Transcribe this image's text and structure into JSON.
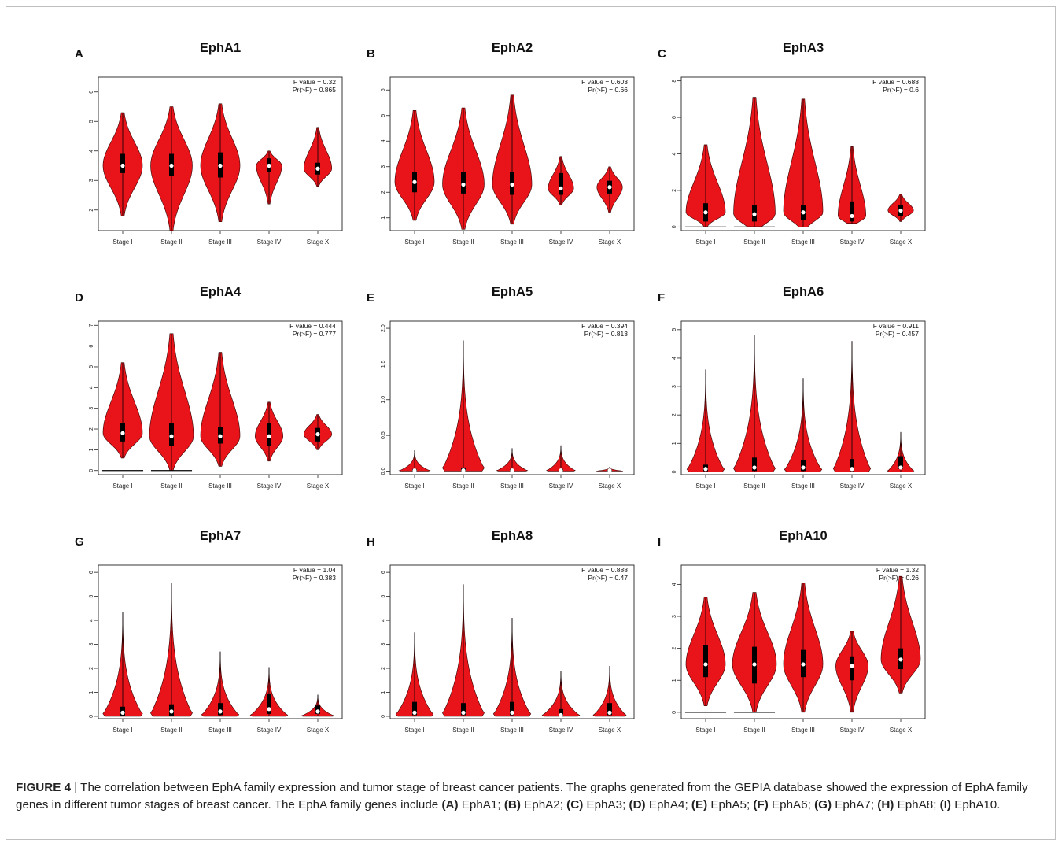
{
  "chart_data": [
    {
      "type": "violin",
      "panel_letter": "A",
      "title": "EphA1",
      "f_label": "F value = 0.32",
      "p_label": "Pr(>F) = 0.865",
      "ylim": [
        1.3,
        6.5
      ],
      "yticks": [
        2,
        3,
        4,
        5,
        6
      ],
      "categories": [
        "Stage I",
        "Stage II",
        "Stage III",
        "Stage IV",
        "Stage X"
      ],
      "series": [
        {
          "min": 1.8,
          "max": 5.3,
          "q1": 3.25,
          "median": 3.5,
          "q3": 3.9,
          "width": 0.85
        },
        {
          "min": 1.3,
          "max": 5.5,
          "q1": 3.15,
          "median": 3.5,
          "q3": 3.9,
          "width": 0.9
        },
        {
          "min": 1.6,
          "max": 5.6,
          "q1": 3.1,
          "median": 3.5,
          "q3": 3.95,
          "width": 0.85
        },
        {
          "min": 2.2,
          "max": 4.0,
          "q1": 3.3,
          "median": 3.5,
          "q3": 3.75,
          "width": 0.55
        },
        {
          "min": 2.8,
          "max": 4.8,
          "q1": 3.2,
          "median": 3.4,
          "q3": 3.6,
          "width": 0.6
        }
      ]
    },
    {
      "type": "violin",
      "panel_letter": "B",
      "title": "EphA2",
      "f_label": "F value = 0.603",
      "p_label": "Pr(>F) = 0.66",
      "ylim": [
        0.5,
        6.5
      ],
      "yticks": [
        1,
        2,
        3,
        4,
        5,
        6
      ],
      "categories": [
        "Stage I",
        "Stage II",
        "Stage III",
        "Stage IV",
        "Stage X"
      ],
      "series": [
        {
          "min": 0.9,
          "max": 5.2,
          "q1": 2.0,
          "median": 2.4,
          "q3": 2.8,
          "width": 0.85
        },
        {
          "min": 0.55,
          "max": 5.3,
          "q1": 1.95,
          "median": 2.3,
          "q3": 2.8,
          "width": 0.9
        },
        {
          "min": 0.75,
          "max": 5.8,
          "q1": 1.9,
          "median": 2.3,
          "q3": 2.8,
          "width": 0.85
        },
        {
          "min": 1.5,
          "max": 3.4,
          "q1": 1.9,
          "median": 2.15,
          "q3": 2.75,
          "width": 0.55
        },
        {
          "min": 1.2,
          "max": 3.0,
          "q1": 1.95,
          "median": 2.2,
          "q3": 2.45,
          "width": 0.55
        }
      ]
    },
    {
      "type": "violin",
      "panel_letter": "C",
      "title": "EphA3",
      "f_label": "F value = 0.688",
      "p_label": "Pr(>F) = 0.6",
      "ylim": [
        -0.2,
        8.2
      ],
      "yticks": [
        0,
        2,
        4,
        6,
        8
      ],
      "categories": [
        "Stage I",
        "Stage II",
        "Stage III",
        "Stage IV",
        "Stage X"
      ],
      "series": [
        {
          "min": 0,
          "max": 4.5,
          "q1": 0.3,
          "median": 0.8,
          "q3": 1.3,
          "width": 0.85,
          "baseline": true
        },
        {
          "min": 0,
          "max": 7.1,
          "q1": 0.3,
          "median": 0.7,
          "q3": 1.2,
          "width": 0.9,
          "baseline": true
        },
        {
          "min": 0,
          "max": 7.0,
          "q1": 0.4,
          "median": 0.8,
          "q3": 1.2,
          "width": 0.85
        },
        {
          "min": 0.2,
          "max": 4.4,
          "q1": 0.3,
          "median": 0.6,
          "q3": 1.4,
          "width": 0.6
        },
        {
          "min": 0.3,
          "max": 1.8,
          "q1": 0.6,
          "median": 0.9,
          "q3": 1.2,
          "width": 0.55
        }
      ]
    },
    {
      "type": "violin",
      "panel_letter": "D",
      "title": "EphA4",
      "f_label": "F value = 0.444",
      "p_label": "Pr(>F) = 0.777",
      "ylim": [
        -0.2,
        7.2
      ],
      "yticks": [
        0,
        1,
        2,
        3,
        4,
        5,
        6,
        7
      ],
      "categories": [
        "Stage I",
        "Stage II",
        "Stage III",
        "Stage IV",
        "Stage X"
      ],
      "series": [
        {
          "min": 0.6,
          "max": 5.2,
          "q1": 1.4,
          "median": 1.8,
          "q3": 2.3,
          "width": 0.85,
          "baseline": true
        },
        {
          "min": 0,
          "max": 6.6,
          "q1": 1.2,
          "median": 1.65,
          "q3": 2.3,
          "width": 0.95,
          "baseline": true
        },
        {
          "min": 0.2,
          "max": 5.7,
          "q1": 1.3,
          "median": 1.65,
          "q3": 2.1,
          "width": 0.85
        },
        {
          "min": 0.45,
          "max": 3.3,
          "q1": 1.2,
          "median": 1.65,
          "q3": 2.3,
          "width": 0.6
        },
        {
          "min": 1.0,
          "max": 2.7,
          "q1": 1.4,
          "median": 1.75,
          "q3": 2.05,
          "width": 0.6
        }
      ]
    },
    {
      "type": "violin",
      "panel_letter": "E",
      "title": "EphA5",
      "f_label": "F value = 0.394",
      "p_label": "Pr(>F) = 0.813",
      "ylim": [
        -0.05,
        2.1
      ],
      "yticks": [
        0.0,
        0.5,
        1.0,
        1.5,
        2.0
      ],
      "categories": [
        "Stage I",
        "Stage II",
        "Stage III",
        "Stage IV",
        "Stage X"
      ],
      "series": [
        {
          "min": 0,
          "max": 0.29,
          "q1": 0,
          "median": 0.01,
          "q3": 0.03,
          "width": 0.7,
          "shape": "base"
        },
        {
          "min": 0,
          "max": 1.83,
          "q1": 0,
          "median": 0.01,
          "q3": 0.05,
          "width": 0.95,
          "shape": "base"
        },
        {
          "min": 0,
          "max": 0.32,
          "q1": 0,
          "median": 0.01,
          "q3": 0.03,
          "width": 0.7,
          "shape": "base"
        },
        {
          "min": 0,
          "max": 0.36,
          "q1": 0,
          "median": 0.01,
          "q3": 0.03,
          "width": 0.65,
          "shape": "base"
        },
        {
          "min": 0,
          "max": 0.06,
          "q1": 0,
          "median": 0.01,
          "q3": 0.02,
          "width": 0.6,
          "shape": "base"
        }
      ]
    },
    {
      "type": "violin",
      "panel_letter": "F",
      "title": "EphA6",
      "f_label": "F value = 0.911",
      "p_label": "Pr(>F) = 0.457",
      "ylim": [
        -0.1,
        5.3
      ],
      "yticks": [
        0,
        1,
        2,
        3,
        4,
        5
      ],
      "categories": [
        "Stage I",
        "Stage II",
        "Stage III",
        "Stage IV",
        "Stage X"
      ],
      "series": [
        {
          "min": 0,
          "max": 3.6,
          "q1": 0.02,
          "median": 0.1,
          "q3": 0.25,
          "width": 0.85,
          "shape": "base"
        },
        {
          "min": 0,
          "max": 4.8,
          "q1": 0.03,
          "median": 0.15,
          "q3": 0.5,
          "width": 0.95,
          "shape": "base"
        },
        {
          "min": 0,
          "max": 3.3,
          "q1": 0.03,
          "median": 0.15,
          "q3": 0.4,
          "width": 0.85,
          "shape": "base"
        },
        {
          "min": 0,
          "max": 4.6,
          "q1": 0.02,
          "median": 0.1,
          "q3": 0.45,
          "width": 0.85,
          "shape": "base"
        },
        {
          "min": 0,
          "max": 1.4,
          "q1": 0.1,
          "median": 0.15,
          "q3": 0.55,
          "width": 0.6,
          "shape": "base"
        }
      ]
    },
    {
      "type": "violin",
      "panel_letter": "G",
      "title": "EphA7",
      "f_label": "F value = 1.04",
      "p_label": "Pr(>F) = 0.383",
      "ylim": [
        -0.1,
        6.3
      ],
      "yticks": [
        0,
        1,
        2,
        3,
        4,
        5,
        6
      ],
      "categories": [
        "Stage I",
        "Stage II",
        "Stage III",
        "Stage IV",
        "Stage X"
      ],
      "series": [
        {
          "min": 0,
          "max": 4.35,
          "q1": 0.02,
          "median": 0.15,
          "q3": 0.4,
          "width": 0.9,
          "shape": "base"
        },
        {
          "min": 0,
          "max": 5.55,
          "q1": 0.02,
          "median": 0.2,
          "q3": 0.5,
          "width": 0.95,
          "shape": "base"
        },
        {
          "min": 0,
          "max": 2.7,
          "q1": 0.05,
          "median": 0.2,
          "q3": 0.55,
          "width": 0.85,
          "shape": "base"
        },
        {
          "min": 0,
          "max": 2.05,
          "q1": 0.1,
          "median": 0.3,
          "q3": 0.95,
          "width": 0.85,
          "shape": "base"
        },
        {
          "min": 0,
          "max": 0.9,
          "q1": 0.1,
          "median": 0.2,
          "q3": 0.45,
          "width": 0.75,
          "shape": "base"
        }
      ]
    },
    {
      "type": "violin",
      "panel_letter": "H",
      "title": "EphA8",
      "f_label": "F value = 0.888",
      "p_label": "Pr(>F) = 0.47",
      "ylim": [
        -0.1,
        6.3
      ],
      "yticks": [
        0,
        1,
        2,
        3,
        4,
        5,
        6
      ],
      "categories": [
        "Stage I",
        "Stage II",
        "Stage III",
        "Stage IV",
        "Stage X"
      ],
      "series": [
        {
          "min": 0,
          "max": 3.5,
          "q1": 0.05,
          "median": 0.15,
          "q3": 0.6,
          "width": 0.85,
          "shape": "base"
        },
        {
          "min": 0,
          "max": 5.5,
          "q1": 0.05,
          "median": 0.15,
          "q3": 0.55,
          "width": 0.95,
          "shape": "base"
        },
        {
          "min": 0,
          "max": 4.1,
          "q1": 0.05,
          "median": 0.15,
          "q3": 0.6,
          "width": 0.85,
          "shape": "base"
        },
        {
          "min": 0,
          "max": 1.9,
          "q1": 0.02,
          "median": 0.05,
          "q3": 0.3,
          "width": 0.85,
          "shape": "base"
        },
        {
          "min": 0,
          "max": 2.1,
          "q1": 0.05,
          "median": 0.15,
          "q3": 0.55,
          "width": 0.75,
          "shape": "base"
        }
      ]
    },
    {
      "type": "violin",
      "panel_letter": "I",
      "title": "EphA10",
      "f_label": "F value = 1.32",
      "p_label": "Pr(>F) = 0.26",
      "ylim": [
        -0.2,
        4.6
      ],
      "yticks": [
        0,
        1,
        2,
        3,
        4
      ],
      "categories": [
        "Stage I",
        "Stage II",
        "Stage III",
        "Stage IV",
        "Stage X"
      ],
      "series": [
        {
          "min": 0.2,
          "max": 3.6,
          "q1": 1.1,
          "median": 1.5,
          "q3": 2.1,
          "width": 0.85,
          "baseline": true
        },
        {
          "min": 0,
          "max": 3.75,
          "q1": 0.9,
          "median": 1.5,
          "q3": 2.05,
          "width": 0.95,
          "baseline": true
        },
        {
          "min": 0,
          "max": 4.05,
          "q1": 1.1,
          "median": 1.5,
          "q3": 1.95,
          "width": 0.85
        },
        {
          "min": 0,
          "max": 2.55,
          "q1": 1.0,
          "median": 1.45,
          "q3": 1.75,
          "width": 0.7
        },
        {
          "min": 0.6,
          "max": 4.25,
          "q1": 1.35,
          "median": 1.65,
          "q3": 2.0,
          "width": 0.85
        }
      ]
    }
  ],
  "colors": {
    "violin": "#e8141a",
    "violin_edge": "#3a0000",
    "box": "#000000",
    "median": "#ffffff"
  },
  "caption": {
    "label": "FIGURE 4",
    "separator": " | ",
    "text": "The correlation between EphA family expression and tumor stage of breast cancer patients. The graphs generated from the GEPIA database showed the expression of EphA family genes in different tumor stages of breast cancer. The EphA family genes include ",
    "items": [
      {
        "letter": "(A)",
        "gene": " EphA1; "
      },
      {
        "letter": "(B)",
        "gene": " EphA2; "
      },
      {
        "letter": "(C)",
        "gene": " EphA3; "
      },
      {
        "letter": "(D)",
        "gene": " EphA4; "
      },
      {
        "letter": "(E)",
        "gene": " EphA5; "
      },
      {
        "letter": "(F)",
        "gene": " EphA6; "
      },
      {
        "letter": "(G)",
        "gene": " EphA7; "
      },
      {
        "letter": "(H)",
        "gene": " EphA8; "
      },
      {
        "letter": "(I)",
        "gene": " EphA10."
      }
    ]
  }
}
